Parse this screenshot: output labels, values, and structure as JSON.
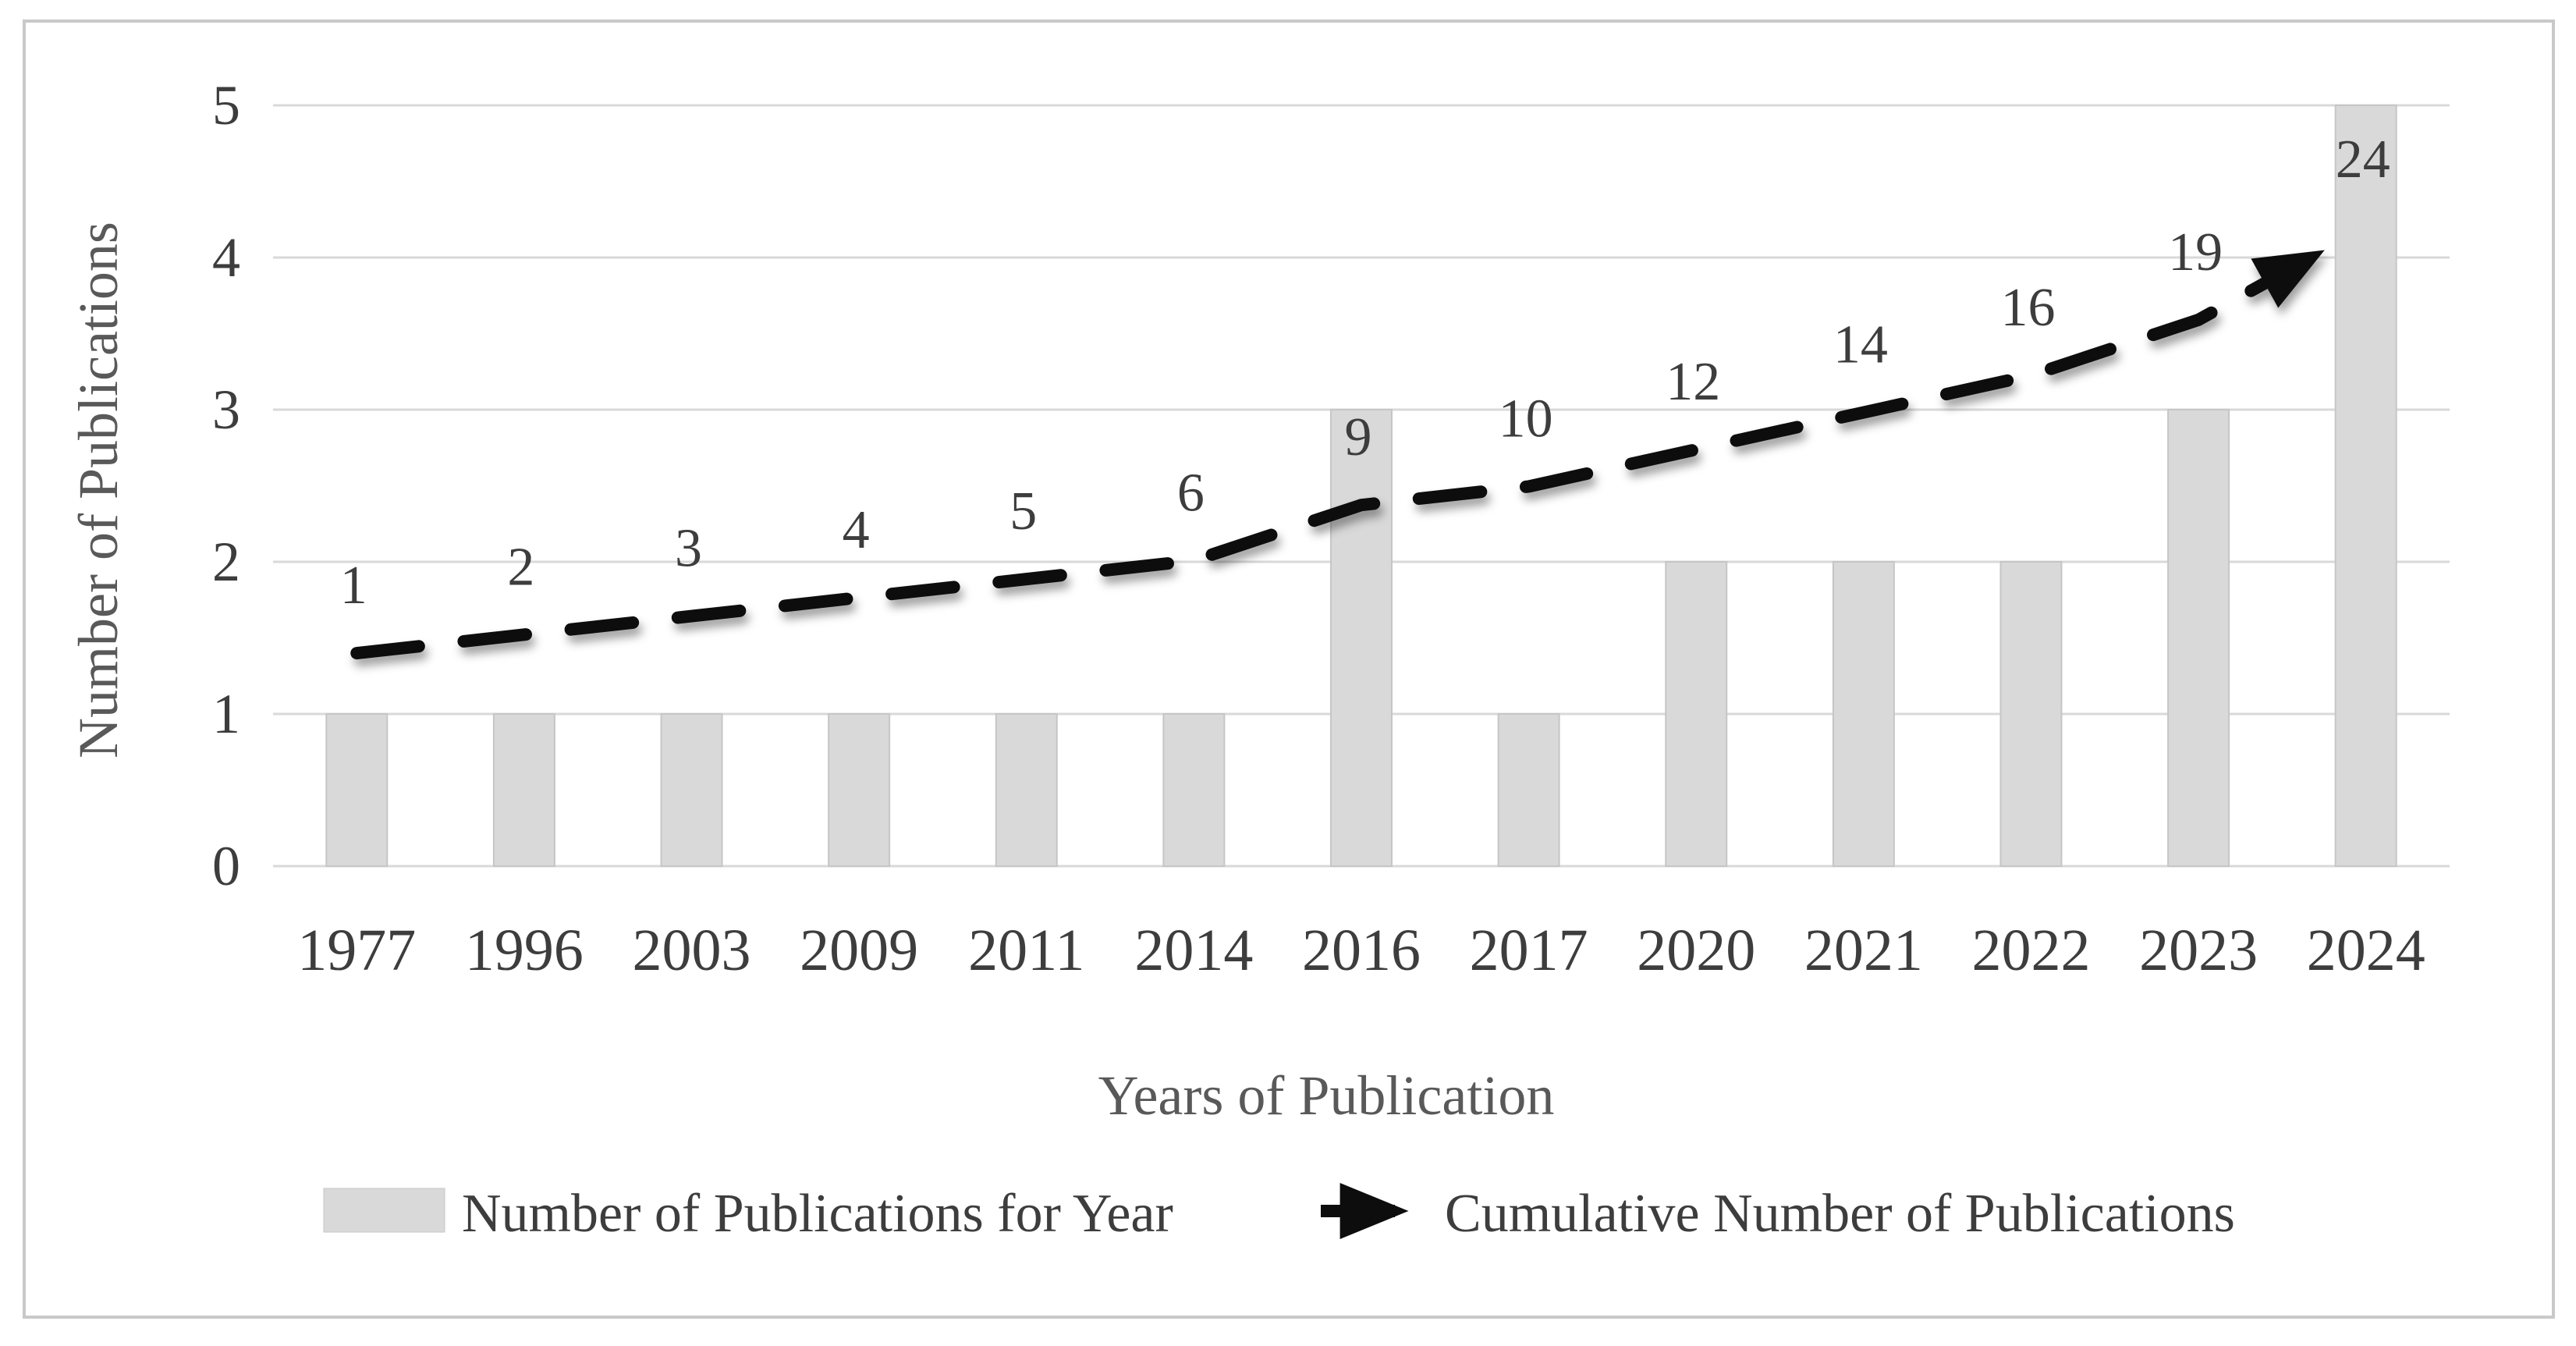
{
  "y_axis_title": "Number of Publications",
  "x_axis_title": "Years of Publication",
  "legend": {
    "bar_label": "Number of Publications for Year",
    "line_label": "Cumulative Number of Publications"
  },
  "colors": {
    "background": "#ffffff",
    "frame_border": "#c9c9c9",
    "gridline": "#d9d9d9",
    "bar_fill": "#d9d9d9",
    "bar_edge": "#c6c6c6",
    "line": "#0d0d0d",
    "tick_text": "#3d3d3d",
    "data_label_text": "#3d3d3d",
    "axis_title_text": "#595959",
    "legend_text": "#3d3d3d"
  },
  "chart_data": {
    "type": "bar",
    "categories": [
      "1977",
      "1996",
      "2003",
      "2009",
      "2011",
      "2014",
      "2016",
      "2017",
      "2020",
      "2021",
      "2022",
      "2023",
      "2024"
    ],
    "series": [
      {
        "name": "Number of Publications for Year",
        "type": "bar",
        "values": [
          1,
          1,
          1,
          1,
          1,
          1,
          3,
          1,
          2,
          2,
          2,
          3,
          5
        ]
      },
      {
        "name": "Cumulative Number of Publications",
        "type": "line",
        "line_style": "dashed",
        "marker_end": "arrow",
        "values": [
          1,
          2,
          3,
          4,
          5,
          6,
          9,
          10,
          12,
          14,
          16,
          19,
          24
        ],
        "data_labels_shown": true
      }
    ],
    "title": "",
    "xlabel": "Years of Publication",
    "ylabel": "Number of Publications",
    "ylim": [
      0,
      5
    ],
    "y_ticks": [
      0,
      1,
      2,
      3,
      4,
      5
    ],
    "grid": "horizontal-only",
    "legend_position": "bottom",
    "line_secondary_scale": {
      "units_per_value": 0.1217,
      "offset_units": 1.278
    }
  }
}
